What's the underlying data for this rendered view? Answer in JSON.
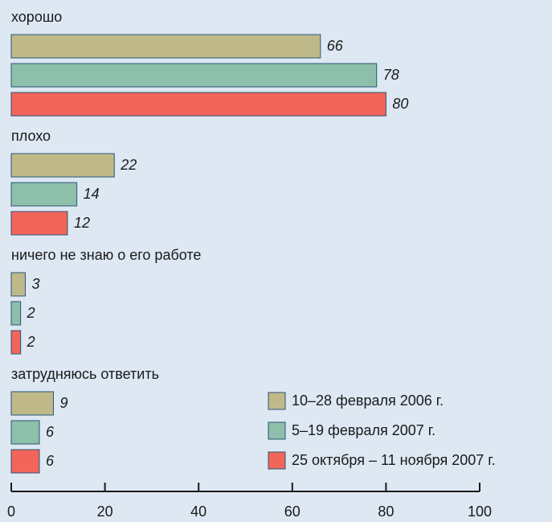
{
  "chart_data": {
    "type": "bar",
    "orientation": "horizontal",
    "categories": [
      "хорошо",
      "плохо",
      "ничего не знаю о его работе",
      "затрудняюсь ответить"
    ],
    "series": [
      {
        "name": "10–28 февраля 2006 г.",
        "color": "#bfb98a",
        "values": [
          66,
          22,
          3,
          9
        ]
      },
      {
        "name": "5–19 февраля 2007 г.",
        "color": "#8dbfaa",
        "values": [
          78,
          14,
          2,
          6
        ]
      },
      {
        "name": "25 октября – 11 ноября 2007 г.",
        "color": "#f2655b",
        "values": [
          80,
          12,
          2,
          6
        ]
      }
    ],
    "xlim": [
      0,
      100
    ],
    "xticks": [
      0,
      20,
      40,
      60,
      80,
      100
    ],
    "legend": "lower right"
  }
}
